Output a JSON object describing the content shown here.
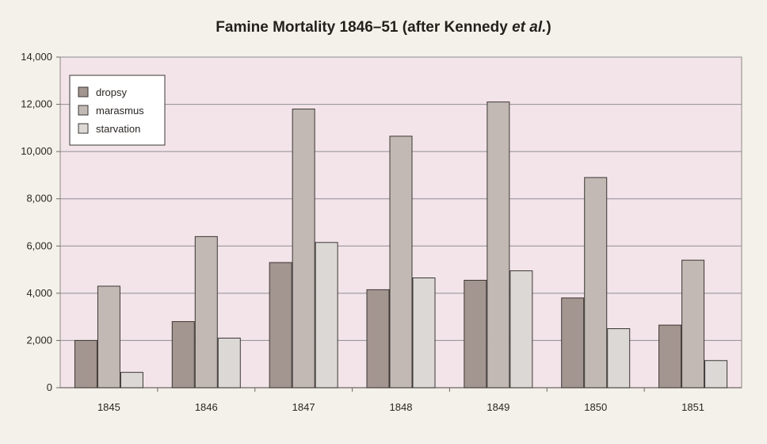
{
  "chart_data": {
    "type": "bar",
    "title_main": "Famine Mortality 1846–51 (after Kennedy",
    "title_italic": "et al.",
    "title_end": ")",
    "categories": [
      "1845",
      "1846",
      "1847",
      "1848",
      "1849",
      "1850",
      "1851"
    ],
    "series": [
      {
        "name": "dropsy",
        "values": [
          2000,
          2800,
          5300,
          4150,
          4550,
          3800,
          2650
        ],
        "color": "#a3958f"
      },
      {
        "name": "marasmus",
        "values": [
          4300,
          6400,
          11800,
          10650,
          12100,
          8900,
          5400
        ],
        "color": "#c2b9b4"
      },
      {
        "name": "starvation",
        "values": [
          650,
          2100,
          6150,
          4650,
          4950,
          2500,
          1150
        ],
        "color": "#dcd8d6"
      }
    ],
    "ylim": [
      0,
      14000
    ],
    "yticks": [
      "0",
      "2,000",
      "4,000",
      "6,000",
      "8,000",
      "10,000",
      "12,000",
      "14,000"
    ],
    "ytick_values": [
      0,
      2000,
      4000,
      6000,
      8000,
      10000,
      12000,
      14000
    ],
    "grid": true,
    "legend_position": "top-left",
    "plot_background": "#f3e4e9"
  }
}
